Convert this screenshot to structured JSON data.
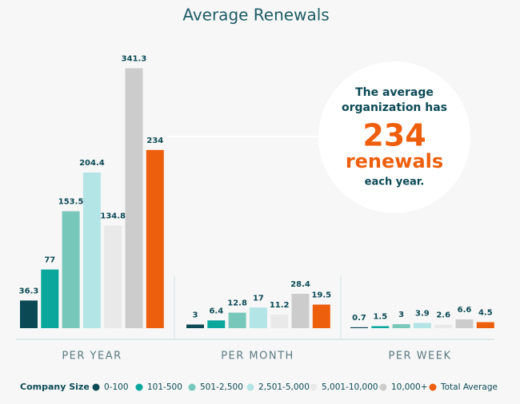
{
  "chart_data": {
    "type": "bar",
    "title": "Average Renewals",
    "legend_title": "Company Size",
    "groups": [
      {
        "label": "PER YEAR",
        "ylim": [
          0,
          346
        ]
      },
      {
        "label": "PER MONTH",
        "ylim": [
          0,
          218
        ]
      },
      {
        "label": "PER WEEK",
        "ylim": [
          0,
          198
        ]
      }
    ],
    "series": [
      {
        "name": "0-100",
        "color": "#0b4a55",
        "values": [
          36.3,
          3,
          0.7
        ]
      },
      {
        "name": "101-500",
        "color": "#0aa79d",
        "values": [
          77,
          6.4,
          1.5
        ]
      },
      {
        "name": "501-2,500",
        "color": "#78c7bb",
        "values": [
          153.5,
          12.8,
          3
        ]
      },
      {
        "name": "2,501-5,000",
        "color": "#b3e4e6",
        "values": [
          204.4,
          17,
          3.9
        ]
      },
      {
        "name": "5,001-10,000",
        "color": "#e9e9e9",
        "values": [
          134.8,
          11.2,
          2.6
        ]
      },
      {
        "name": "10,000+",
        "color": "#cccccc",
        "values": [
          341.3,
          28.4,
          6.6
        ]
      },
      {
        "name": "Total Average",
        "color": "#ee5f0d",
        "values": [
          234,
          19.5,
          4.5
        ]
      }
    ],
    "callout": {
      "line1": "The average",
      "line2": "organization has",
      "highlight": "234",
      "line3": "renewals",
      "line4": "each year."
    }
  }
}
